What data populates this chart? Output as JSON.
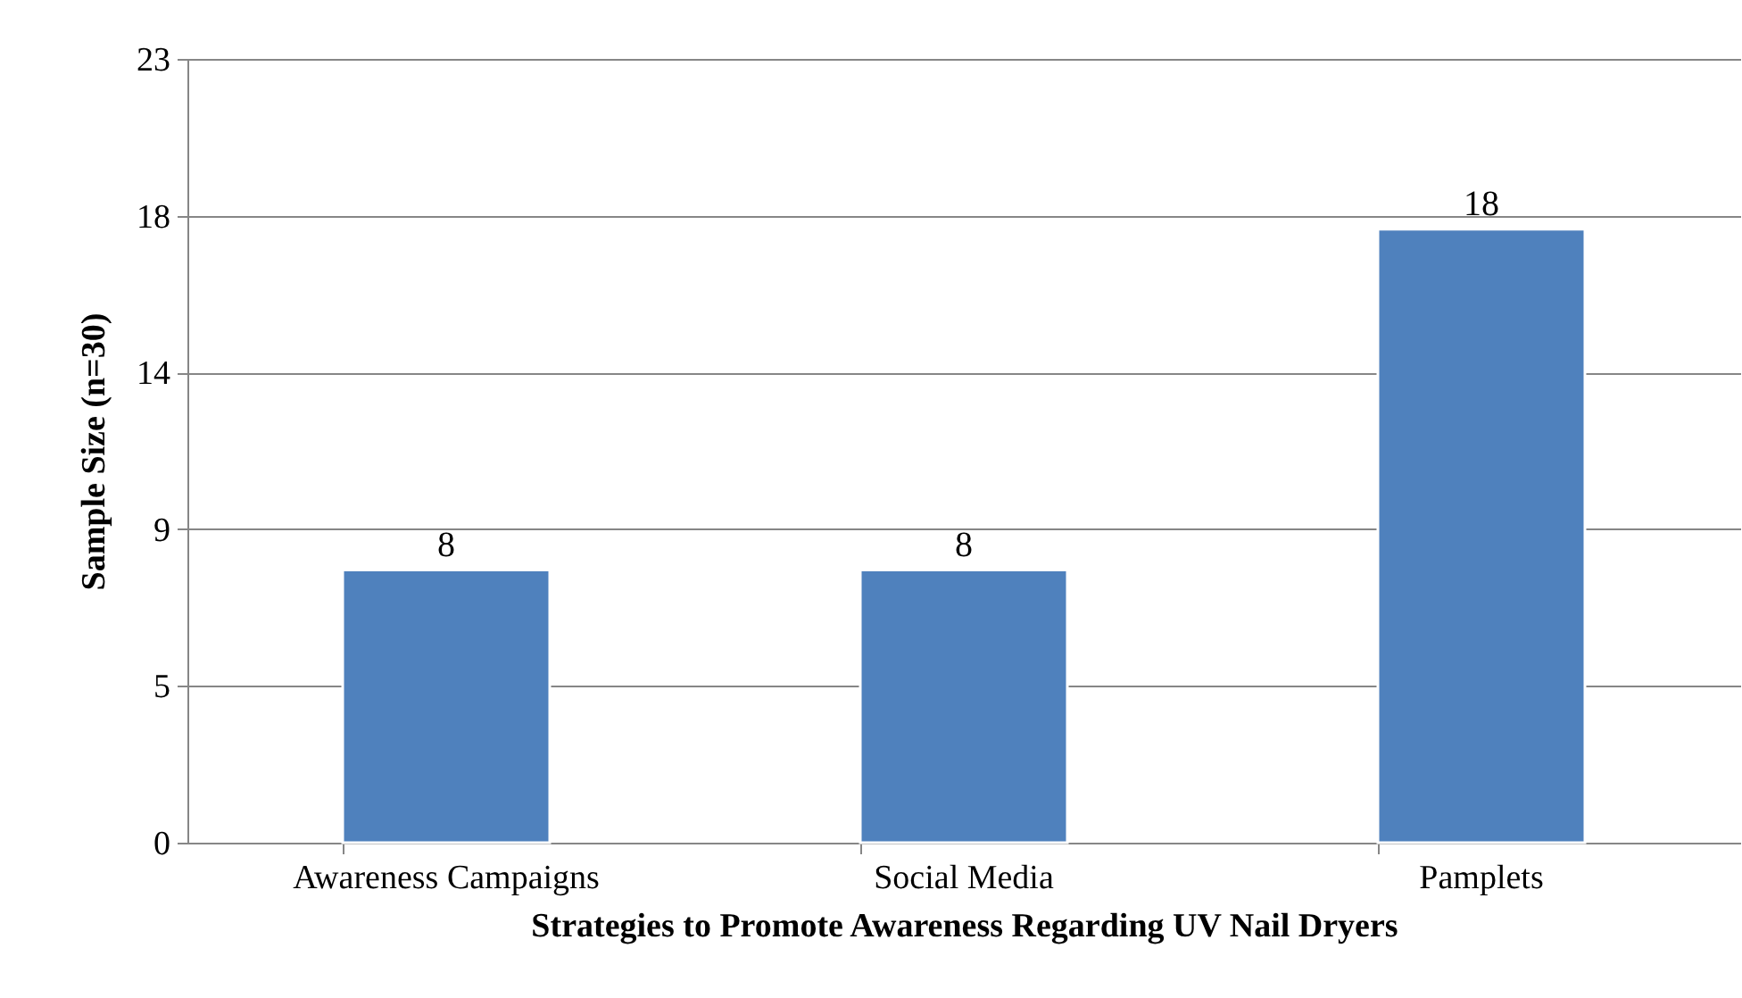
{
  "chart_data": {
    "type": "bar",
    "xlabel": "Strategies to Promote Awareness Regarding UV Nail Dryers",
    "ylabel": "Sample Size (n=30)",
    "categories": [
      "Awareness Campaigns",
      "Social Media",
      "Pamplets"
    ],
    "values": [
      8,
      8,
      18
    ],
    "color": "#4f81bd",
    "ylim": [
      0,
      23
    ],
    "yticks": [
      0,
      {
        "value": 4.6,
        "label": "5"
      },
      {
        "value": 9.2,
        "label": "9"
      },
      {
        "value": 13.8,
        "label": "14"
      },
      {
        "value": 18.4,
        "label": "18"
      },
      23
    ],
    "grid": "y",
    "data_labels": true
  }
}
